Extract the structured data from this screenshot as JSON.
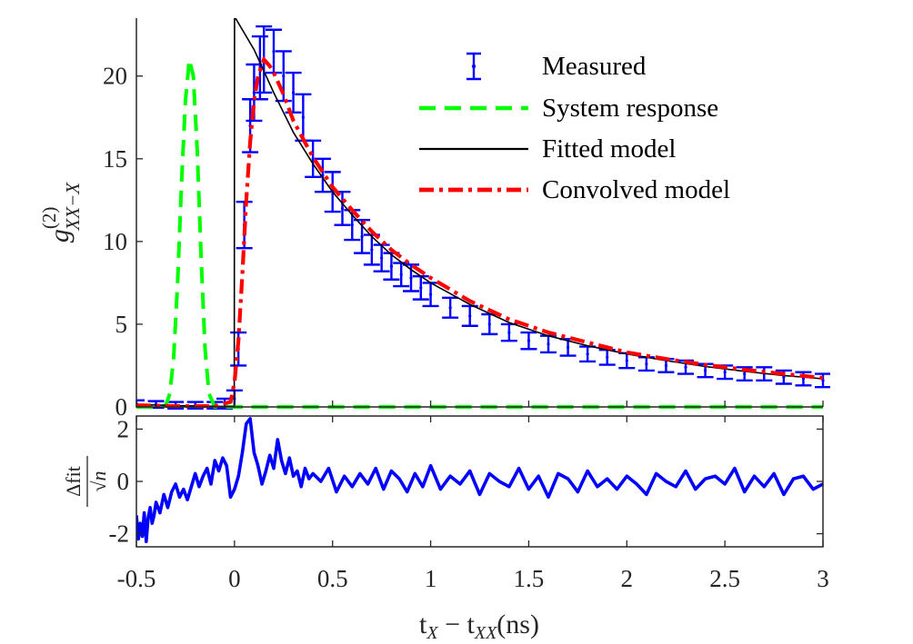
{
  "chart_data": [
    {
      "type": "line",
      "panel": "top",
      "xlim": [
        -0.5,
        3
      ],
      "ylim": [
        0,
        23.5
      ],
      "yticks": [
        0,
        5,
        10,
        15,
        20
      ],
      "grid": false,
      "legend_location": "top-right",
      "ylabel": {
        "base": "g",
        "superscript": "(2)",
        "subscript": "XX−X"
      },
      "series": [
        {
          "name": "Measured",
          "style": "errorbar",
          "color": "#0000FF",
          "x": [
            -0.5,
            -0.4,
            -0.3,
            -0.2,
            -0.1,
            -0.05,
            0,
            0.02,
            0.05,
            0.08,
            0.1,
            0.13,
            0.15,
            0.2,
            0.25,
            0.3,
            0.35,
            0.4,
            0.45,
            0.5,
            0.55,
            0.6,
            0.65,
            0.7,
            0.75,
            0.8,
            0.85,
            0.9,
            0.95,
            1.0,
            1.1,
            1.2,
            1.3,
            1.4,
            1.5,
            1.6,
            1.7,
            1.8,
            1.9,
            2.0,
            2.1,
            2.2,
            2.3,
            2.4,
            2.5,
            2.6,
            2.7,
            2.8,
            2.9,
            3.0
          ],
          "y": [
            0.2,
            0.15,
            0.1,
            0.1,
            0.1,
            0.2,
            0.5,
            3.5,
            11.0,
            17.0,
            19.0,
            20.5,
            21.0,
            21.5,
            20.0,
            19.0,
            17.5,
            15.0,
            14.0,
            13.0,
            12.0,
            11.0,
            10.3,
            9.5,
            9.0,
            8.5,
            8.0,
            7.8,
            7.2,
            6.8,
            6.0,
            5.5,
            5.0,
            4.5,
            4.0,
            3.8,
            3.6,
            3.2,
            3.0,
            2.8,
            2.6,
            2.5,
            2.4,
            2.2,
            2.1,
            2.0,
            2.0,
            1.8,
            1.7,
            1.6
          ],
          "error": [
            0.2,
            0.2,
            0.2,
            0.2,
            0.2,
            0.3,
            0.5,
            1.0,
            1.4,
            1.6,
            1.7,
            1.9,
            2.0,
            1.3,
            1.5,
            1.2,
            1.4,
            1.1,
            1.0,
            1.2,
            1.0,
            0.9,
            1.0,
            0.9,
            0.8,
            0.8,
            0.7,
            0.8,
            0.7,
            0.7,
            0.6,
            0.6,
            0.6,
            0.5,
            0.5,
            0.5,
            0.5,
            0.45,
            0.45,
            0.45,
            0.4,
            0.4,
            0.4,
            0.4,
            0.4,
            0.4,
            0.4,
            0.4,
            0.4,
            0.4
          ]
        },
        {
          "name": "System response",
          "style": "dashed",
          "color": "#00FF00",
          "x": [
            -0.5,
            -0.4,
            -0.35,
            -0.33,
            -0.31,
            -0.29,
            -0.27,
            -0.25,
            -0.23,
            -0.21,
            -0.19,
            -0.17,
            -0.15,
            -0.13,
            -0.1,
            0,
            1,
            2,
            3
          ],
          "y": [
            0,
            0,
            0.1,
            0.8,
            3.0,
            7.5,
            13.5,
            18.5,
            21.0,
            20.0,
            15.5,
            9.0,
            3.5,
            0.8,
            0,
            0,
            0,
            0,
            0
          ]
        },
        {
          "name": "Fitted model",
          "style": "solid",
          "color": "#000000",
          "x": [
            -0.5,
            -0.3,
            -0.1,
            -0.001,
            0,
            0.1,
            0.2,
            0.3,
            0.4,
            0.5,
            0.6,
            0.7,
            0.8,
            0.9,
            1.0,
            1.2,
            1.4,
            1.6,
            1.8,
            2.0,
            2.2,
            2.4,
            2.6,
            2.8,
            3.0
          ],
          "y": [
            0.15,
            0.08,
            0.04,
            0.02,
            23.6,
            21.6,
            19.0,
            16.6,
            14.7,
            13.0,
            11.6,
            10.3,
            9.2,
            8.3,
            7.5,
            6.2,
            5.1,
            4.3,
            3.7,
            3.2,
            2.8,
            2.45,
            2.15,
            1.9,
            1.7
          ]
        },
        {
          "name": "Convolved model",
          "style": "dashdot",
          "color": "#FF0000",
          "x": [
            -0.5,
            -0.3,
            -0.1,
            -0.02,
            0,
            0.02,
            0.04,
            0.06,
            0.08,
            0.1,
            0.12,
            0.15,
            0.18,
            0.2,
            0.25,
            0.3,
            0.4,
            0.5,
            0.6,
            0.7,
            0.8,
            0.9,
            1.0,
            1.2,
            1.4,
            1.6,
            1.8,
            2.0,
            2.2,
            2.4,
            2.6,
            2.8,
            3.0
          ],
          "y": [
            0.1,
            0.05,
            0.05,
            0.3,
            1.5,
            4.0,
            8.0,
            12.5,
            16.0,
            18.5,
            20.0,
            21.0,
            20.6,
            20.2,
            18.9,
            17.3,
            15.1,
            13.3,
            11.9,
            10.6,
            9.5,
            8.6,
            7.8,
            6.4,
            5.3,
            4.5,
            3.9,
            3.3,
            2.9,
            2.55,
            2.25,
            2.0,
            1.75
          ]
        }
      ]
    },
    {
      "type": "line",
      "panel": "bottom",
      "xlim": [
        -0.5,
        3
      ],
      "ylim": [
        -2.5,
        2.5
      ],
      "xticks": [
        -0.5,
        0,
        0.5,
        1,
        1.5,
        2,
        2.5,
        3
      ],
      "yticks": [
        -2,
        0,
        2
      ],
      "xlabel": {
        "t1": "t",
        "sub1": "X",
        "minus": " − ",
        "t2": "t",
        "sub2": "XX",
        "unit": "(ns)"
      },
      "ylabel": {
        "numerator": "Δfit",
        "denominator": "√n"
      },
      "series": [
        {
          "style": "solid",
          "color": "#0000FF",
          "x": [
            -0.5,
            -0.49,
            -0.48,
            -0.47,
            -0.46,
            -0.45,
            -0.44,
            -0.43,
            -0.42,
            -0.41,
            -0.4,
            -0.38,
            -0.36,
            -0.34,
            -0.32,
            -0.3,
            -0.28,
            -0.26,
            -0.24,
            -0.22,
            -0.2,
            -0.18,
            -0.16,
            -0.14,
            -0.12,
            -0.1,
            -0.08,
            -0.06,
            -0.04,
            -0.02,
            0,
            0.02,
            0.04,
            0.06,
            0.08,
            0.1,
            0.12,
            0.14,
            0.16,
            0.18,
            0.2,
            0.22,
            0.24,
            0.26,
            0.28,
            0.3,
            0.32,
            0.34,
            0.36,
            0.38,
            0.4,
            0.44,
            0.48,
            0.52,
            0.56,
            0.6,
            0.64,
            0.68,
            0.72,
            0.76,
            0.8,
            0.84,
            0.88,
            0.92,
            0.96,
            1.0,
            1.05,
            1.1,
            1.15,
            1.2,
            1.25,
            1.3,
            1.35,
            1.4,
            1.45,
            1.5,
            1.55,
            1.6,
            1.65,
            1.7,
            1.75,
            1.8,
            1.85,
            1.9,
            1.95,
            2.0,
            2.05,
            2.1,
            2.15,
            2.2,
            2.25,
            2.3,
            2.35,
            2.4,
            2.45,
            2.5,
            2.55,
            2.6,
            2.65,
            2.7,
            2.75,
            2.8,
            2.85,
            2.9,
            2.95,
            3.0
          ],
          "y": [
            -1.3,
            -2.2,
            -1.6,
            -2.1,
            -1.2,
            -2.3,
            -1.4,
            -1.0,
            -1.6,
            -1.3,
            -0.8,
            -1.2,
            -0.5,
            -1.0,
            -0.4,
            -0.1,
            -0.6,
            -0.3,
            -0.7,
            -0.2,
            0.3,
            -0.2,
            0.2,
            0.5,
            -0.1,
            0.8,
            0.4,
            0.9,
            0.6,
            -0.6,
            -0.3,
            0.2,
            1.1,
            2.2,
            2.4,
            1.1,
            0.6,
            -0.1,
            0.4,
            1.0,
            0.5,
            1.6,
            0.8,
            0.3,
            0.9,
            0.2,
            0.4,
            -0.2,
            0.5,
            0.1,
            0.3,
            0.0,
            0.5,
            -0.4,
            0.2,
            -0.2,
            0.3,
            -0.1,
            0.5,
            -0.3,
            0.4,
            0.1,
            -0.4,
            0.3,
            -0.2,
            0.6,
            -0.3,
            0.2,
            -0.1,
            0.4,
            -0.5,
            0.3,
            0.0,
            -0.2,
            0.5,
            -0.3,
            0.2,
            -0.6,
            0.3,
            0.1,
            -0.4,
            0.4,
            -0.2,
            0.1,
            -0.3,
            0.2,
            -0.1,
            -0.5,
            0.3,
            0.0,
            -0.2,
            0.4,
            -0.3,
            0.1,
            0.2,
            -0.1,
            0.5,
            -0.4,
            0.2,
            -0.2,
            0.3,
            -0.5,
            0.1,
            0.2,
            -0.3,
            -0.1
          ]
        }
      ]
    }
  ]
}
